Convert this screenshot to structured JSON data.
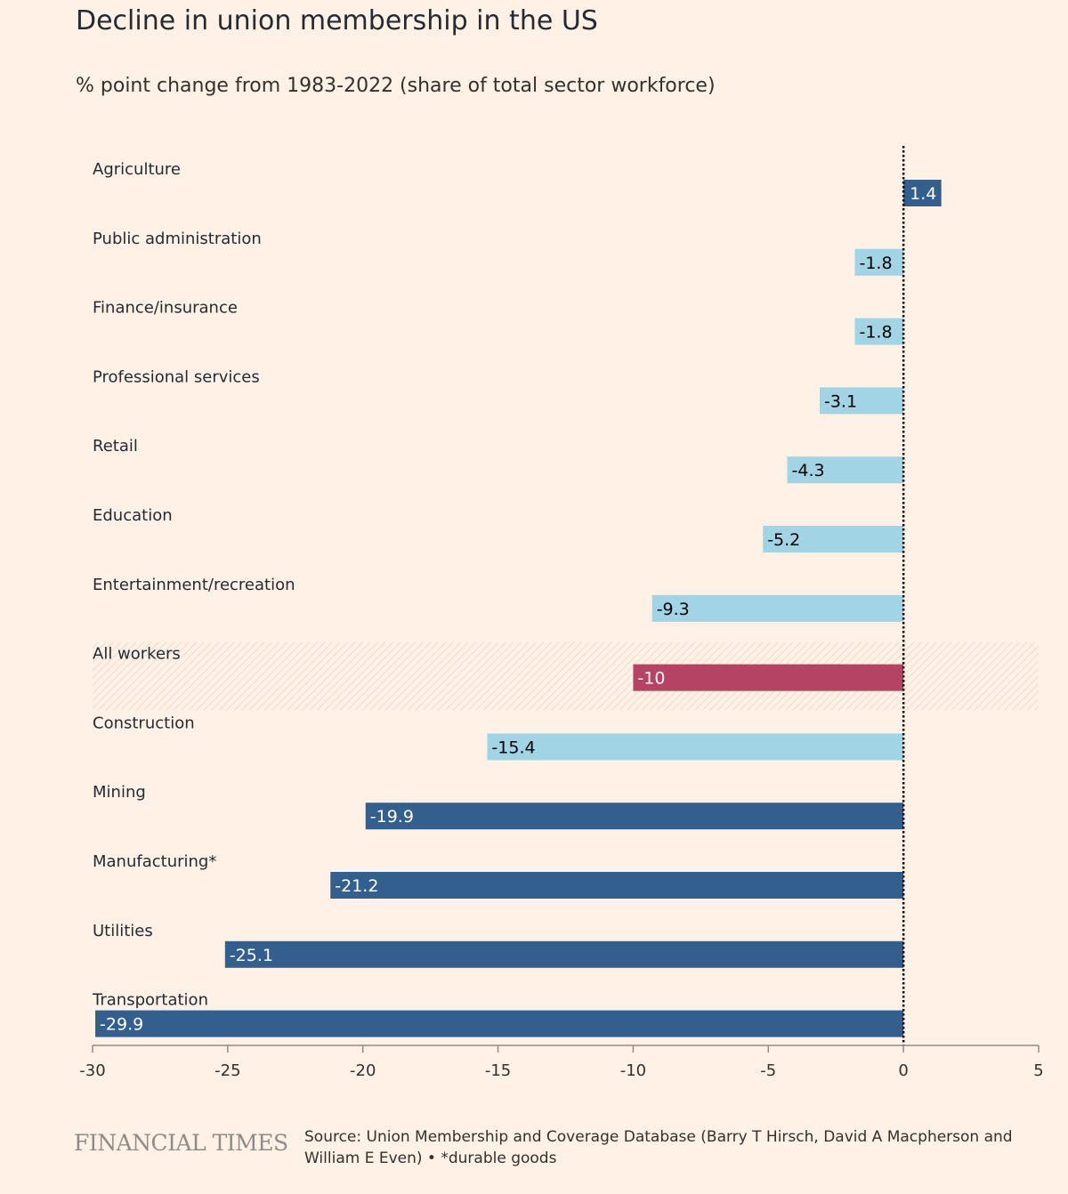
{
  "header": {
    "title": "Decline in union membership in the US",
    "subtitle": "% point change from 1983-2022 (share of total sector workforce)"
  },
  "footer": {
    "brand": "FINANCIAL TIMES",
    "source": "Source: Union Membership and Coverage Database (Barry T Hirsch, David A Macpherson and William E Even) • *durable goods"
  },
  "colors": {
    "background": "#fff1e5",
    "dark_blue": "#325f8e",
    "light_blue": "#a1d4e4",
    "highlight": "#b54363"
  },
  "chart_data": {
    "type": "bar",
    "orientation": "horizontal",
    "title": "Decline in union membership in the US",
    "subtitle": "% point change from 1983-2022 (share of total sector workforce)",
    "xlim": [
      -30,
      5
    ],
    "xticks": [
      "-30",
      "-25",
      "-20",
      "-15",
      "-10",
      "-5",
      "0",
      "5"
    ],
    "grid": false,
    "categories": [
      "Agriculture",
      "Public administration",
      "Finance/insurance",
      "Professional services",
      "Retail",
      "Education",
      "Entertainment/recreation",
      "All workers",
      "Construction",
      "Mining",
      "Manufacturing*",
      "Utilities",
      "Transportation"
    ],
    "values": [
      1.4,
      -1.8,
      -1.8,
      -3.1,
      -4.3,
      -5.2,
      -9.3,
      -10,
      -15.4,
      -19.9,
      -21.2,
      -25.1,
      -29.9
    ],
    "value_labels": [
      "1.4",
      "-1.8",
      "-1.8",
      "-3.1",
      "-4.3",
      "-5.2",
      "-9.3",
      "-10",
      "-15.4",
      "-19.9",
      "-21.2",
      "-25.1",
      "-29.9"
    ],
    "bar_colors": [
      "dark_blue",
      "light_blue",
      "light_blue",
      "light_blue",
      "light_blue",
      "light_blue",
      "light_blue",
      "highlight",
      "light_blue",
      "dark_blue",
      "dark_blue",
      "dark_blue",
      "dark_blue"
    ],
    "highlighted_category": "All workers"
  }
}
